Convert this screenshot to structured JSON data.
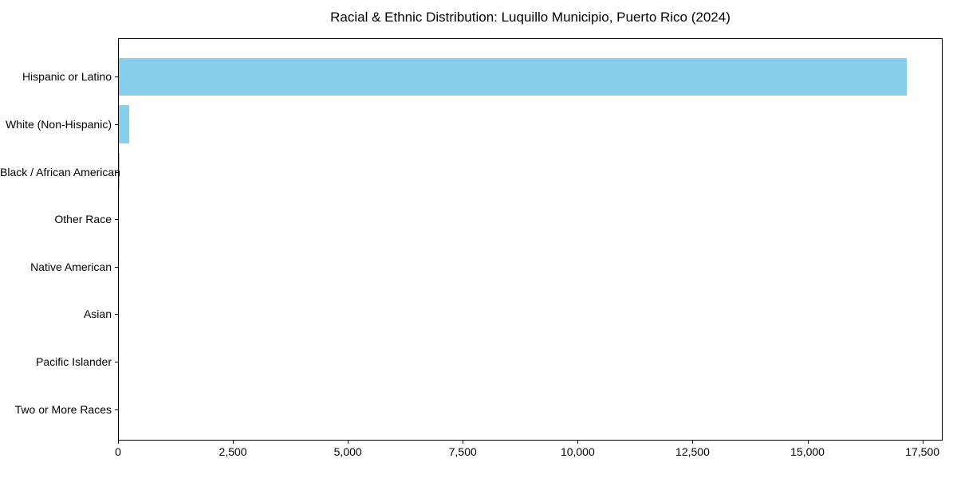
{
  "title": "Racial & Ethnic Distribution: Luquillo Municipio, Puerto Rico (2024)",
  "chart_data": {
    "type": "bar",
    "orientation": "horizontal",
    "title": "Racial & Ethnic Distribution: Luquillo Municipio, Puerto Rico (2024)",
    "xlabel": "",
    "ylabel": "",
    "categories": [
      "Hispanic or Latino",
      "White (Non-Hispanic)",
      "Black / African American",
      "Other Race",
      "Native American",
      "Asian",
      "Pacific Islander",
      "Two or More Races"
    ],
    "values": [
      17150,
      230,
      25,
      0,
      0,
      0,
      0,
      0
    ],
    "xlim": [
      0,
      17940
    ],
    "xticks": [
      0,
      2500,
      5000,
      7500,
      10000,
      12500,
      15000,
      17500
    ],
    "xtick_labels": [
      "0",
      "2,500",
      "5,000",
      "7,500",
      "10,000",
      "12,500",
      "15,000",
      "17,500"
    ],
    "bar_color": "#87CEEB",
    "grid": false,
    "legend": null
  }
}
